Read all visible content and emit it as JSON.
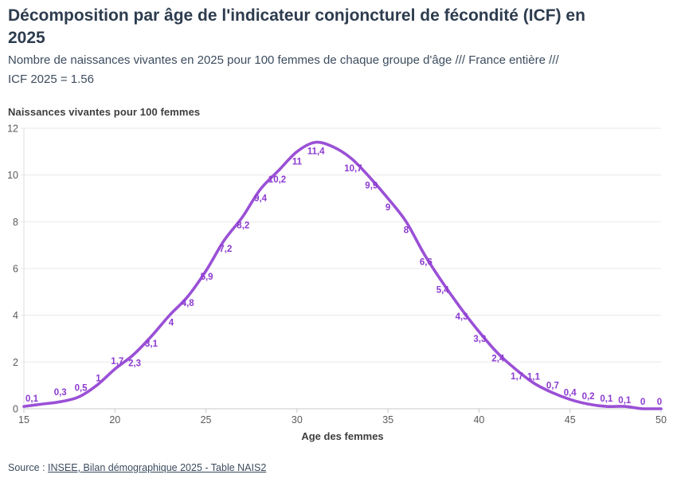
{
  "header": {
    "title_lines": [
      "Décomposition par âge de l'indicateur conjoncturel de fécondité (ICF) en",
      "2025"
    ],
    "subtitle_lines": [
      "Nombre de naissances vivantes en 2025 pour 100 femmes de chaque groupe d'âge /// France entière ///",
      "ICF 2025 = 1.56"
    ]
  },
  "chart_data": {
    "type": "line",
    "title": "Naissances vivantes pour 100 femmes",
    "xlabel": "Age des femmes",
    "ylabel": "Naissances vivantes pour 100 femmes",
    "xlim": [
      15,
      50
    ],
    "ylim": [
      0,
      12
    ],
    "x_ticks": [
      15,
      20,
      25,
      30,
      35,
      40,
      45,
      50
    ],
    "y_ticks": [
      0,
      2,
      4,
      6,
      8,
      10,
      12
    ],
    "grid": "horizontal",
    "colors": {
      "line": "#9a50d6",
      "data_label": "#8c3bd0",
      "grid_line": "#e9e9e9",
      "axis_line": "#c9c9c9",
      "tick_text": "#5a5a5a"
    },
    "series": [
      {
        "points": [
          {
            "age": 15,
            "value": 0.1,
            "label": "0,1",
            "dx": 10,
            "dy": -10
          },
          {
            "age": 16,
            "value": 0.2,
            "label": null,
            "estimated": true,
            "dx": 0,
            "dy": 0
          },
          {
            "age": 17,
            "value": 0.3,
            "label": "0,3",
            "dx": 0,
            "dy": -12
          },
          {
            "age": 18,
            "value": 0.5,
            "label": "0,5",
            "dx": 3,
            "dy": -12
          },
          {
            "age": 19,
            "value": 1,
            "label": "1",
            "dx": 2,
            "dy": -9
          },
          {
            "age": 20,
            "value": 1.7,
            "label": "1,7",
            "dx": 3,
            "dy": -10
          },
          {
            "age": 21,
            "value": 2.3,
            "label": "2,3",
            "dx": 2,
            "dy": 10
          },
          {
            "age": 22,
            "value": 3.1,
            "label": "3,1",
            "dx": 0,
            "dy": 9
          },
          {
            "age": 23,
            "value": 4,
            "label": "4",
            "dx": 2,
            "dy": 9
          },
          {
            "age": 24,
            "value": 4.8,
            "label": "4,8",
            "dx": 0,
            "dy": 8
          },
          {
            "age": 25,
            "value": 5.9,
            "label": "5,9",
            "dx": 1,
            "dy": 7
          },
          {
            "age": 26,
            "value": 7.2,
            "label": "7,2",
            "dx": 2,
            "dy": 10
          },
          {
            "age": 27,
            "value": 8.2,
            "label": "8,2",
            "dx": 1,
            "dy": 10
          },
          {
            "age": 28,
            "value": 9.4,
            "label": "9,4",
            "dx": 0,
            "dy": 11
          },
          {
            "age": 29,
            "value": 10.2,
            "label": "10,2",
            "dx": -2,
            "dy": 11
          },
          {
            "age": 30,
            "value": 11,
            "label": "11",
            "dx": 0,
            "dy": 12
          },
          {
            "age": 31,
            "value": 11.4,
            "label": "11,4",
            "dx": 1,
            "dy": 11
          },
          {
            "age": 32,
            "value": 11.2,
            "label": null,
            "estimated": true,
            "dx": 0,
            "dy": 0
          },
          {
            "age": 33,
            "value": 10.7,
            "label": "10,7",
            "dx": 2,
            "dy": 12
          },
          {
            "age": 34,
            "value": 9.9,
            "label": "9,9",
            "dx": 2,
            "dy": 10
          },
          {
            "age": 35,
            "value": 9,
            "label": "9",
            "dx": 0,
            "dy": 11
          },
          {
            "age": 36,
            "value": 8,
            "label": "8",
            "dx": 0,
            "dy": 10
          },
          {
            "age": 37,
            "value": 6.6,
            "label": "6,6",
            "dx": 2,
            "dy": 9
          },
          {
            "age": 38,
            "value": 5.4,
            "label": "5,4",
            "dx": 0,
            "dy": 9
          },
          {
            "age": 39,
            "value": 4.3,
            "label": "4,3",
            "dx": 1,
            "dy": 10
          },
          {
            "age": 40,
            "value": 3.3,
            "label": "3,3",
            "dx": 1,
            "dy": 9
          },
          {
            "age": 41,
            "value": 2.4,
            "label": "2,4",
            "dx": 1,
            "dy": 7
          },
          {
            "age": 42,
            "value": 1.7,
            "label": "1,7",
            "dx": 2,
            "dy": 9
          },
          {
            "age": 43,
            "value": 1.1,
            "label": "1,1",
            "dx": 0,
            "dy": -8
          },
          {
            "age": 44,
            "value": 0.7,
            "label": "0,7",
            "dx": 1,
            "dy": -9
          },
          {
            "age": 45,
            "value": 0.4,
            "label": "0,4",
            "dx": 0,
            "dy": -9
          },
          {
            "age": 46,
            "value": 0.2,
            "label": "0,2",
            "dx": 0,
            "dy": -10
          },
          {
            "age": 47,
            "value": 0.1,
            "label": "0,1",
            "dx": 0,
            "dy": -10
          },
          {
            "age": 48,
            "value": 0.1,
            "label": "0,1",
            "dx": 0,
            "dy": -8
          },
          {
            "age": 49,
            "value": 0,
            "label": "0",
            "dx": 0,
            "dy": -9
          },
          {
            "age": 50,
            "value": 0,
            "label": "0",
            "dx": -2,
            "dy": -9
          }
        ]
      }
    ]
  },
  "source": {
    "prefix": "Source : ",
    "link_text": "INSEE, Bilan démographique 2025 - Table NAIS2"
  }
}
